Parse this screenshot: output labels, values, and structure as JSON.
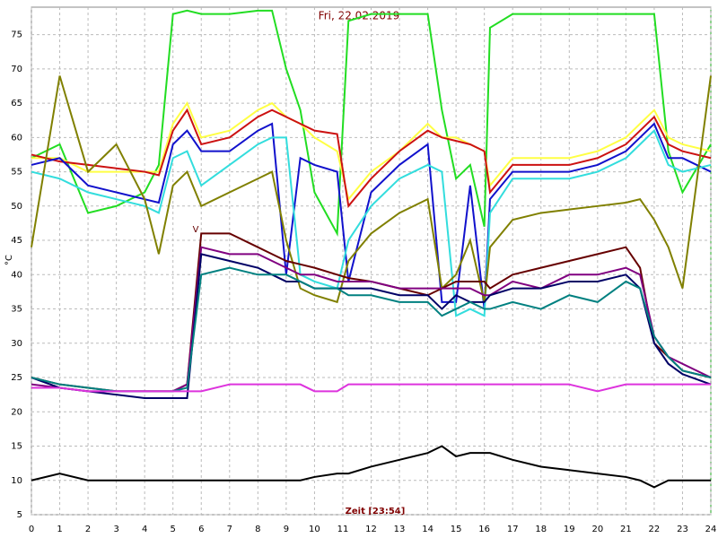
{
  "chart_data": {
    "type": "line",
    "title": "Fri, 22.02.2019",
    "xlabel": "Zeit [23:54]",
    "ylabel": "°C",
    "annotations": [
      "V"
    ],
    "x": [
      0,
      1,
      2,
      3,
      4,
      4.5,
      5,
      5.5,
      6,
      7,
      8,
      8.5,
      9,
      9.5,
      10,
      10.8,
      11.2,
      12,
      13,
      14,
      14.5,
      15,
      15.5,
      16,
      16.2,
      17,
      18,
      19,
      20,
      21,
      21.5,
      22,
      22.5,
      23,
      24
    ],
    "xlim": [
      0,
      24
    ],
    "xticks": [
      0,
      1,
      2,
      3,
      4,
      5,
      6,
      7,
      8,
      9,
      10,
      11,
      12,
      13,
      14,
      15,
      16,
      17,
      18,
      19,
      20,
      21,
      22,
      23,
      24
    ],
    "ylim": [
      5,
      79
    ],
    "yticks": [
      5,
      10,
      15,
      20,
      25,
      30,
      35,
      40,
      45,
      50,
      55,
      60,
      65,
      70,
      75
    ],
    "grid": true,
    "series": [
      {
        "color": "#22dd22",
        "values": [
          57,
          59,
          49,
          50,
          52,
          56,
          78,
          78.5,
          78,
          78,
          78.5,
          78.5,
          70,
          64,
          52,
          46,
          77,
          78,
          78,
          78,
          64,
          54,
          56,
          47,
          76,
          78,
          78,
          78,
          78,
          78,
          78,
          78,
          58,
          52,
          59
        ]
      },
      {
        "color": "#ffff44",
        "values": [
          57,
          57,
          55,
          55,
          55,
          55,
          62,
          65,
          60,
          61,
          64,
          65,
          63,
          62,
          60,
          58,
          51,
          55,
          58,
          62,
          60,
          60,
          59,
          58,
          53,
          57,
          57,
          57,
          58,
          60,
          62,
          64,
          60,
          59,
          58
        ]
      },
      {
        "color": "#cc1111",
        "values": [
          57.5,
          56.5,
          56,
          55.5,
          55,
          54.5,
          61,
          64,
          59,
          60,
          63,
          64,
          63,
          62,
          61,
          60.5,
          50,
          54,
          58,
          61,
          60,
          59.5,
          59,
          58,
          52,
          56,
          56,
          56,
          57,
          59,
          61,
          63,
          59,
          58,
          57
        ]
      },
      {
        "color": "#1111cc",
        "values": [
          56,
          57,
          53,
          52,
          51,
          50.5,
          59,
          61,
          58,
          58,
          61,
          62,
          40,
          57,
          56,
          55,
          39,
          52,
          56,
          59,
          36,
          36,
          53,
          35,
          51,
          55,
          55,
          55,
          56,
          58,
          60,
          62,
          57,
          57,
          55
        ]
      },
      {
        "color": "#33dddd",
        "values": [
          55,
          54,
          52,
          51,
          50,
          49,
          57,
          58,
          53,
          56,
          59,
          60,
          60,
          40,
          39,
          38,
          45,
          50,
          54,
          56,
          55,
          34,
          35,
          34,
          49,
          54,
          54,
          54,
          55,
          57,
          59,
          61,
          56,
          55,
          56
        ]
      },
      {
        "color": "#808000",
        "values": [
          44,
          69,
          55,
          59,
          51,
          43,
          53,
          55,
          50,
          52,
          54,
          55,
          45,
          38,
          37,
          36,
          42,
          46,
          49,
          51,
          38,
          40,
          45,
          36,
          44,
          48,
          49,
          49.5,
          50,
          50.5,
          51,
          48,
          44,
          38,
          69
        ]
      },
      {
        "color": "#660000",
        "values": [
          25,
          24,
          23.5,
          23,
          23,
          23,
          23,
          24,
          46,
          46,
          44,
          43,
          42,
          41.5,
          41,
          40,
          39.5,
          39,
          38,
          37,
          38,
          39,
          39,
          39,
          38,
          40,
          41,
          42,
          43,
          44,
          41,
          30,
          28,
          26,
          25
        ]
      },
      {
        "color": "#800080",
        "values": [
          24,
          23.5,
          23,
          23,
          23,
          23,
          23,
          24,
          44,
          43,
          43,
          42,
          41,
          40,
          40,
          39,
          39,
          39,
          38,
          38,
          38,
          38,
          38,
          37,
          37,
          39,
          38,
          40,
          40,
          41,
          40,
          31,
          28,
          27,
          25
        ]
      },
      {
        "color": "#000066",
        "values": [
          25,
          23.5,
          23,
          22.5,
          22,
          22,
          22,
          22,
          43,
          42,
          41,
          40,
          39,
          39,
          38,
          38,
          38,
          38,
          37,
          37,
          35,
          37,
          36,
          36,
          37,
          38,
          38,
          39,
          39,
          40,
          38,
          30,
          27,
          25.5,
          24
        ]
      },
      {
        "color": "#008080",
        "values": [
          25,
          24,
          23.5,
          23,
          23,
          23,
          23,
          23.5,
          40,
          41,
          40,
          40,
          40,
          39,
          38,
          38,
          37,
          37,
          36,
          36,
          34,
          35,
          36,
          35,
          35,
          36,
          35,
          37,
          36,
          39,
          38,
          31,
          28,
          26,
          25
        ]
      },
      {
        "color": "#dd33dd",
        "values": [
          23.5,
          23.5,
          23,
          23,
          23,
          23,
          23,
          23,
          23,
          24,
          24,
          24,
          24,
          24,
          23,
          23,
          24,
          24,
          24,
          24,
          24,
          24,
          24,
          24,
          24,
          24,
          24,
          24,
          23,
          24,
          24,
          24,
          24,
          24,
          24
        ]
      },
      {
        "color": "#000000",
        "values": [
          10,
          11,
          10,
          10,
          10,
          10,
          10,
          10,
          10,
          10,
          10,
          10,
          10,
          10,
          10.5,
          11,
          11,
          12,
          13,
          14,
          15,
          13.5,
          14,
          14,
          14,
          13,
          12,
          11.5,
          11,
          10.5,
          10,
          9,
          10,
          10,
          10
        ]
      }
    ]
  }
}
